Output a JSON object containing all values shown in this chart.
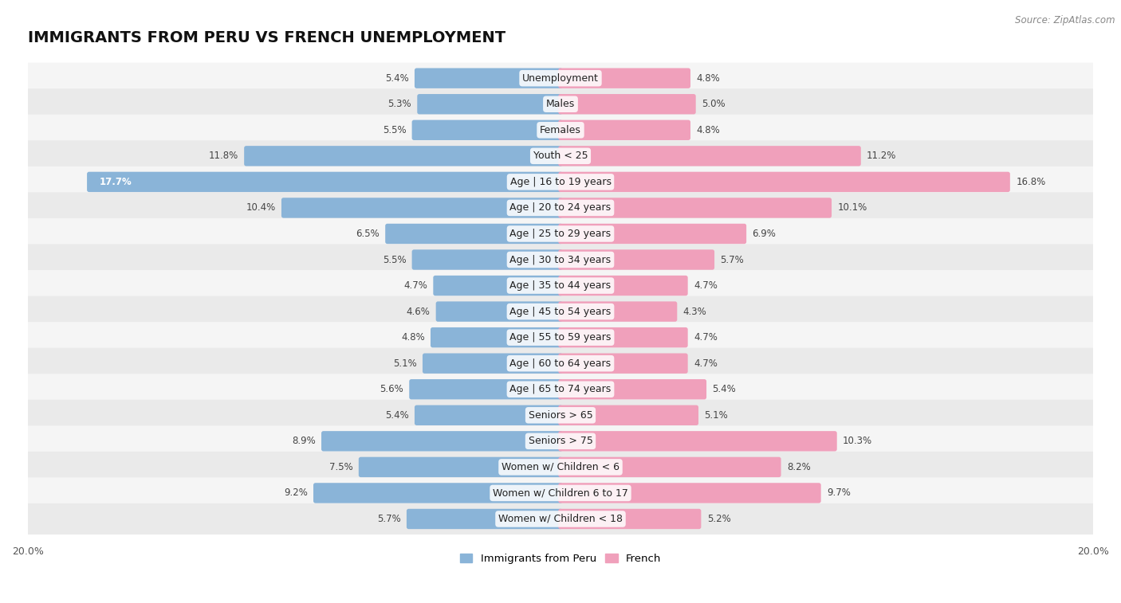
{
  "title": "IMMIGRANTS FROM PERU VS FRENCH UNEMPLOYMENT",
  "source": "Source: ZipAtlas.com",
  "categories": [
    "Unemployment",
    "Males",
    "Females",
    "Youth < 25",
    "Age | 16 to 19 years",
    "Age | 20 to 24 years",
    "Age | 25 to 29 years",
    "Age | 30 to 34 years",
    "Age | 35 to 44 years",
    "Age | 45 to 54 years",
    "Age | 55 to 59 years",
    "Age | 60 to 64 years",
    "Age | 65 to 74 years",
    "Seniors > 65",
    "Seniors > 75",
    "Women w/ Children < 6",
    "Women w/ Children 6 to 17",
    "Women w/ Children < 18"
  ],
  "left_values": [
    5.4,
    5.3,
    5.5,
    11.8,
    17.7,
    10.4,
    6.5,
    5.5,
    4.7,
    4.6,
    4.8,
    5.1,
    5.6,
    5.4,
    8.9,
    7.5,
    9.2,
    5.7
  ],
  "right_values": [
    4.8,
    5.0,
    4.8,
    11.2,
    16.8,
    10.1,
    6.9,
    5.7,
    4.7,
    4.3,
    4.7,
    4.7,
    5.4,
    5.1,
    10.3,
    8.2,
    9.7,
    5.2
  ],
  "left_color": "#8ab4d8",
  "right_color": "#f0a0bb",
  "bar_height": 0.62,
  "xlim": 20.0,
  "row_bg_odd": "#f5f5f5",
  "row_bg_even": "#eaeaea",
  "legend_left": "Immigrants from Peru",
  "legend_right": "French",
  "title_fontsize": 14,
  "label_fontsize": 9,
  "value_fontsize": 8.5,
  "axis_fontsize": 9,
  "fig_bg": "#ffffff"
}
